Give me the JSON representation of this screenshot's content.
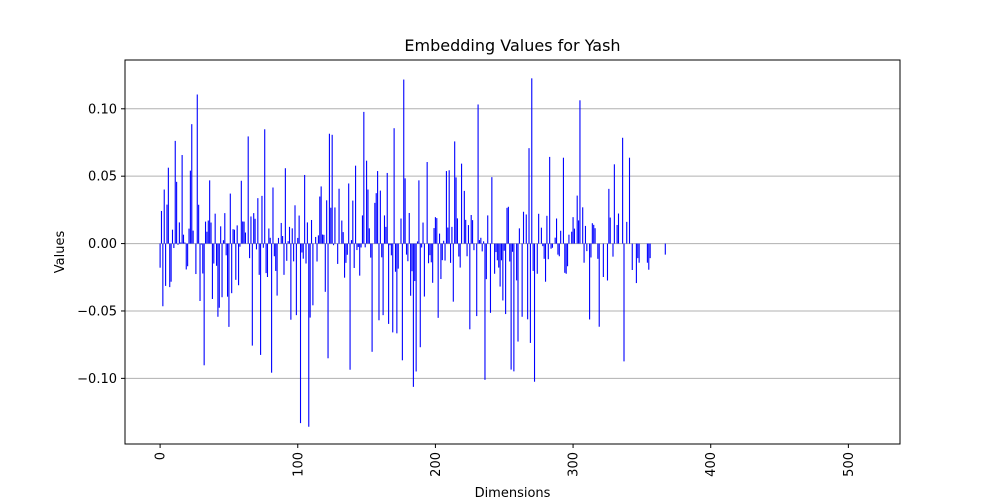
{
  "chart_data": {
    "type": "bar",
    "title": "Embedding Values for Yash",
    "xlabel": "Dimensions",
    "ylabel": "Values",
    "xlim": [
      -25.5,
      537.5
    ],
    "ylim": [
      -0.1487,
      0.1362
    ],
    "x_ticks": [
      0,
      100,
      200,
      300,
      400,
      500
    ],
    "x_tick_labels": [
      "0",
      "100",
      "200",
      "300",
      "400",
      "500"
    ],
    "y_ticks": [
      -0.1,
      -0.05,
      0.0,
      0.05,
      0.1
    ],
    "y_tick_labels": [
      "−0.10",
      "−0.05",
      "0.00",
      "0.05",
      "0.10"
    ],
    "grid": "horizontal",
    "bar_color": "#0000ff",
    "grid_color": "#b0b0b0",
    "n_dimensions": 512,
    "values": [
      -0.0179,
      0.0242,
      -0.0465,
      0.0401,
      -0.0314,
      0.0289,
      0.0563,
      -0.0323,
      -0.0283,
      0.0103,
      -0.0033,
      0.0762,
      0.0458,
      -0.0009,
      0.0157,
      0.0008,
      0.0657,
      0.0066,
      0.0008,
      -0.0192,
      -0.0168,
      0.0111,
      0.0541,
      0.0886,
      0.0096,
      0.0,
      -0.0226,
      0.1106,
      0.0288,
      -0.0426,
      -0.0007,
      -0.0222,
      -0.0903,
      0.0163,
      0.0088,
      0.0171,
      0.0469,
      0.0156,
      -0.0411,
      -0.0148,
      0.0222,
      -0.0165,
      -0.0543,
      -0.0476,
      0.0128,
      -0.0398,
      0.0025,
      0.0226,
      -0.0087,
      -0.0394,
      -0.0618,
      0.0371,
      -0.0368,
      0.0107,
      0.0103,
      -0.0269,
      0.0135,
      -0.0309,
      -0.0023,
      0.0466,
      0.0164,
      0.0163,
      0.0082,
      0.0,
      0.0795,
      -0.0108,
      0.0201,
      -0.0757,
      0.0226,
      0.0184,
      -0.0043,
      0.0337,
      -0.0232,
      -0.0826,
      0.0354,
      -0.0031,
      0.0848,
      -0.0219,
      -0.0248,
      0.0112,
      0.0043,
      -0.0958,
      0.0416,
      -0.0094,
      -0.0203,
      -0.0386,
      0.0042,
      0.0,
      0.0153,
      0.0056,
      -0.0232,
      0.0559,
      -0.0128,
      0.0018,
      0.0124,
      -0.0565,
      0.0113,
      -0.0132,
      0.0284,
      -0.0531,
      0.0042,
      0.0208,
      -0.1332,
      -0.0066,
      -0.0112,
      0.0509,
      -0.0148,
      0.0157,
      -0.1359,
      -0.0549,
      0.0175,
      -0.0458,
      0.0,
      0.0049,
      -0.0133,
      0.0061,
      0.0349,
      0.0424,
      0.0067,
      0.0065,
      -0.0358,
      0.0321,
      -0.0851,
      0.0815,
      0.0266,
      0.0807,
      -0.0012,
      0.0268,
      0.0,
      -0.0151,
      0.0407,
      0.0,
      0.0171,
      0.0085,
      -0.0253,
      -0.0143,
      -0.0083,
      0.0446,
      -0.0936,
      0.0026,
      0.0319,
      -0.0181,
      0.0578,
      -0.0048,
      -0.0025,
      -0.0238,
      -0.0029,
      0.0209,
      0.0977,
      -0.0028,
      0.0615,
      0.0401,
      0.0113,
      -0.0104,
      -0.0803,
      0.0,
      0.0302,
      0.0374,
      0.0538,
      -0.0569,
      0.0393,
      -0.0102,
      -0.0531,
      0.0209,
      0.0124,
      0.0524,
      -0.0596,
      -0.0012,
      -0.0087,
      -0.0659,
      0.0856,
      -0.0209,
      -0.0666,
      -0.0186,
      0.0,
      0.0186,
      -0.0866,
      0.1217,
      0.0484,
      -0.0082,
      -0.0131,
      0.0227,
      -0.0387,
      -0.0205,
      -0.1063,
      -0.0278,
      -0.0949,
      0.0016,
      0.0469,
      -0.0769,
      -0.0029,
      0.0156,
      -0.0393,
      0.0,
      0.0605,
      -0.0146,
      -0.0086,
      -0.0139,
      -0.0291,
      0.0115,
      0.0196,
      0.0189,
      -0.0551,
      0.0074,
      -0.0263,
      -0.0123,
      0.0021,
      -0.0126,
      0.0538,
      0.0119,
      0.0544,
      -0.0143,
      0.0124,
      -0.0431,
      0.0758,
      0.0491,
      0.0187,
      -0.0096,
      -0.0178,
      0.0593,
      0.0,
      0.0391,
      0.0176,
      -0.0094,
      0.0137,
      -0.0636,
      0.0212,
      0.0174,
      -0.0049,
      0.0,
      -0.0538,
      0.1032,
      0.0026,
      0.0043,
      -0.0058,
      0.0017,
      -0.1011,
      -0.0264,
      0.0209,
      0.0,
      -0.0514,
      0.0493,
      0.0,
      -0.0224,
      -0.0063,
      -0.0124,
      -0.0178,
      -0.0319,
      -0.0124,
      -0.0422,
      -0.0053,
      -0.0523,
      0.0265,
      0.0273,
      -0.0133,
      -0.0935,
      -0.0061,
      -0.0948,
      0.0,
      -0.0273,
      -0.0727,
      0.0113,
      0.0,
      -0.0543,
      0.0236,
      0.0,
      0.0216,
      -0.0562,
      0.0708,
      -0.0737,
      0.1226,
      -0.0203,
      -0.1025,
      0.0,
      -0.0224,
      0.0221,
      0.0,
      0.0118,
      -0.0019,
      -0.0113,
      -0.0283,
      0.0206,
      -0.0116,
      0.0643,
      -0.0038,
      -0.0031,
      0.0,
      0.0044,
      0.0186,
      -0.0082,
      -0.0094,
      0.0095,
      0.0,
      0.0637,
      -0.0217,
      -0.0224,
      -0.0168,
      0.0066,
      0.0,
      0.0088,
      0.0196,
      0.0111,
      0.0,
      0.0356,
      0.0172,
      0.1063,
      0.0,
      0.0269,
      -0.0142,
      0.0131,
      -0.0056,
      0.0,
      -0.0563,
      -0.0103,
      0.0151,
      0.0139,
      0.0114,
      0.0,
      -0.0113,
      -0.0617,
      0.0,
      0.0,
      -0.0248,
      0.0,
      0.0,
      -0.0274,
      0.0406,
      0.0193,
      0.0,
      -0.0097,
      0.0588,
      0.0,
      0.0138,
      0.0223,
      0.0,
      0.0,
      0.0785,
      -0.0874,
      0.0,
      0.0161,
      0.0,
      0.0637,
      0.0,
      -0.0196,
      0.0,
      0.0,
      -0.0293,
      -0.0108,
      -0.0142,
      0.0,
      0.0,
      0.0,
      0.0,
      0.0,
      -0.0142,
      -0.0194,
      -0.0108,
      0.0,
      0.0,
      0.0,
      0.0,
      0.0,
      0.0,
      0.0,
      0.0,
      0.0,
      0.0,
      -0.0082,
      0.0,
      0.0,
      0.0,
      0.0,
      0.0,
      0.0,
      0.0,
      0.0,
      0.0,
      0.0,
      0.0,
      0.0,
      0.0,
      0.0,
      0.0,
      0.0,
      0.0,
      0.0,
      0.0,
      0.0,
      0.0,
      0.0,
      0.0,
      0.0,
      0.0,
      0.0,
      0.0,
      0.0,
      0.0,
      0.0,
      0.0,
      0.0,
      0.0,
      0.0,
      0.0,
      0.0,
      0.0,
      0.0,
      0.0,
      0.0,
      0.0,
      0.0,
      0.0,
      0.0,
      0.0,
      0.0,
      0.0,
      0.0,
      0.0,
      0.0,
      0.0,
      0.0,
      0.0,
      0.0,
      0.0,
      0.0,
      0.0,
      0.0,
      0.0,
      0.0,
      0.0,
      0.0,
      0.0,
      0.0,
      0.0,
      0.0,
      0.0,
      0.0,
      0.0,
      0.0,
      0.0,
      0.0,
      0.0,
      0.0,
      0.0,
      0.0,
      0.0,
      0.0,
      0.0,
      0.0,
      0.0,
      0.0,
      0.0,
      0.0,
      0.0,
      0.0,
      0.0,
      0.0,
      0.0,
      0.0,
      0.0,
      0.0,
      0.0,
      0.0,
      0.0,
      0.0,
      0.0,
      0.0,
      0.0,
      0.0,
      0.0,
      0.0,
      0.0,
      0.0,
      0.0,
      0.0,
      0.0,
      0.0,
      0.0,
      0.0,
      0.0,
      0.0,
      0.0,
      0.0,
      0.0,
      0.0,
      0.0,
      0.0,
      0.0,
      0.0,
      0.0,
      0.0,
      0.0,
      0.0,
      0.0,
      0.0,
      0.0,
      0.0,
      0.0,
      0.0,
      0.0,
      0.0,
      0.0,
      0.0,
      0.0,
      0.0,
      0.0,
      0.0,
      0.0,
      0.0,
      0.0,
      0.0,
      0.0,
      0.0,
      0.0,
      0.0,
      0.0,
      0.0,
      0.0,
      0.0,
      0.0,
      0.0,
      0.0,
      0.0,
      0.0,
      0.0,
      0.0,
      0.0
    ]
  }
}
